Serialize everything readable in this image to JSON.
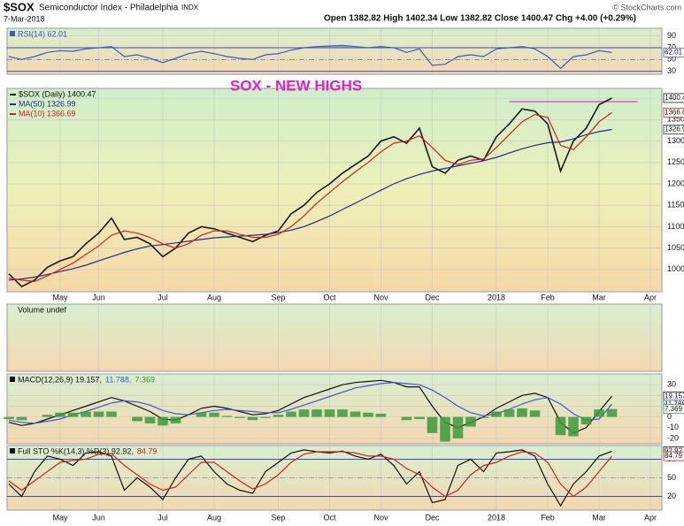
{
  "header": {
    "symbol": "$SOX",
    "name": "Semiconductor Index - Philadelphia",
    "exchange": "INDX",
    "date": "7-Mar-2018",
    "quote": "Open 1382.82 High 1402.34 Low 1382.82 Close 1400.47 Chg +4.00 (+0.29%)",
    "copyright": "© StockCharts.com"
  },
  "chart_data": [
    {
      "type": "line",
      "legend": "stacked",
      "categories": [
        null,
        null,
        null,
        null,
        "May",
        null,
        null,
        "Jun",
        null,
        null,
        null,
        null,
        "Jul",
        null,
        null,
        null,
        "Aug",
        null,
        null,
        null,
        null,
        "Sep",
        null,
        null,
        null,
        "Oct",
        null,
        null,
        null,
        "Nov",
        null,
        null,
        null,
        "Dec",
        null,
        null,
        null,
        null,
        "2018",
        null,
        null,
        null,
        "Feb",
        null,
        null,
        null,
        "Mar",
        null,
        null,
        null,
        "Apr"
      ],
      "ylim": [
        948,
        1423
      ],
      "yticks": [
        1000,
        1050,
        1100,
        1150,
        1200,
        1250,
        1300,
        1350,
        1400
      ],
      "grid": true,
      "annotation": {
        "text": "SOX - NEW HIGHS",
        "color": "#e020c8"
      },
      "hline": {
        "value": 1392,
        "color": "#e040c0"
      },
      "series": [
        {
          "name": "$SOX (Daily) 1400.47",
          "color": "#1a1a1a",
          "values": [
            990,
            960,
            975,
            1005,
            1020,
            1030,
            1060,
            1085,
            1120,
            1070,
            1075,
            1060,
            1030,
            1050,
            1085,
            1100,
            1095,
            1085,
            1075,
            1065,
            1080,
            1090,
            1130,
            1150,
            1180,
            1200,
            1225,
            1245,
            1265,
            1300,
            1310,
            1295,
            1330,
            1240,
            1225,
            1255,
            1265,
            1255,
            1310,
            1340,
            1375,
            1370,
            1340,
            1230,
            1300,
            1330,
            1385,
            1400.47,
            null,
            null,
            null
          ]
        },
        {
          "name": "MA(50) 1326.99",
          "color": "#1f2f8f",
          "values": [
            975,
            978,
            982,
            988,
            995,
            1002,
            1010,
            1020,
            1030,
            1040,
            1048,
            1055,
            1058,
            1062,
            1066,
            1070,
            1074,
            1076,
            1078,
            1080,
            1082,
            1086,
            1092,
            1100,
            1112,
            1125,
            1140,
            1155,
            1170,
            1185,
            1200,
            1212,
            1222,
            1230,
            1236,
            1242,
            1248,
            1254,
            1262,
            1272,
            1282,
            1290,
            1296,
            1298,
            1305,
            1315,
            1322,
            1326.99,
            null,
            null,
            null
          ]
        },
        {
          "name": "MA(10) 1366.69",
          "color": "#d02020",
          "values": [
            980,
            975,
            972,
            985,
            1000,
            1015,
            1035,
            1055,
            1080,
            1090,
            1085,
            1075,
            1060,
            1050,
            1060,
            1080,
            1090,
            1090,
            1082,
            1075,
            1075,
            1082,
            1100,
            1125,
            1155,
            1180,
            1205,
            1228,
            1250,
            1275,
            1295,
            1300,
            1312,
            1285,
            1255,
            1245,
            1255,
            1258,
            1285,
            1315,
            1345,
            1362,
            1355,
            1290,
            1280,
            1310,
            1345,
            1366.69,
            null,
            null,
            null
          ]
        }
      ]
    },
    {
      "type": "line",
      "legend": "inline",
      "ylim": [
        25,
        103
      ],
      "yticks": [
        30,
        50,
        70,
        90
      ],
      "series": [
        {
          "name": "RSI(14) 62.01",
          "color": "#3a5bbf",
          "values": [
            55,
            50,
            55,
            62,
            65,
            64,
            68,
            70,
            72,
            55,
            58,
            52,
            45,
            52,
            60,
            64,
            60,
            55,
            52,
            50,
            58,
            60,
            66,
            70,
            72,
            73,
            74,
            72,
            70,
            72,
            70,
            62,
            68,
            40,
            42,
            55,
            58,
            55,
            68,
            70,
            72,
            68,
            55,
            35,
            55,
            58,
            65,
            62.01,
            null,
            null,
            null
          ]
        }
      ]
    },
    {
      "type": "bar",
      "title": "Volume undef"
    },
    {
      "type": "line",
      "legend": "inline",
      "ylim": [
        -25,
        40
      ],
      "yticks": [
        -20,
        -10,
        0,
        10,
        20,
        30
      ],
      "series": [
        {
          "name": "MACD(12,26,9) 19.157,",
          "color": "#111111",
          "values": [
            -5,
            -8,
            -6,
            -2,
            2,
            6,
            10,
            14,
            18,
            15,
            10,
            5,
            -2,
            -3,
            2,
            8,
            10,
            8,
            5,
            2,
            3,
            6,
            12,
            18,
            22,
            26,
            30,
            32,
            33,
            34,
            32,
            28,
            28,
            10,
            -5,
            -10,
            -5,
            0,
            8,
            14,
            20,
            22,
            18,
            -5,
            -15,
            -10,
            5,
            19.157,
            null,
            null,
            null
          ]
        },
        {
          "name": "11.788,",
          "color": "#3b58d6",
          "values": [
            -3,
            -5,
            -6,
            -4,
            -2,
            2,
            5,
            9,
            13,
            15,
            14,
            11,
            6,
            3,
            2,
            4,
            6,
            7,
            6,
            5,
            4,
            4,
            7,
            11,
            15,
            19,
            23,
            27,
            29,
            31,
            32,
            31,
            30,
            25,
            18,
            10,
            4,
            1,
            3,
            7,
            12,
            16,
            18,
            12,
            3,
            -3,
            -2,
            11.788,
            null,
            null,
            null
          ]
        },
        {
          "name": "7.369",
          "color": "#3a9a3a",
          "style": "histogram",
          "values": [
            -2,
            -3,
            0,
            2,
            4,
            4,
            5,
            5,
            5,
            0,
            -4,
            -6,
            -8,
            -6,
            0,
            4,
            4,
            1,
            -1,
            -3,
            -1,
            2,
            5,
            7,
            7,
            7,
            7,
            5,
            4,
            3,
            0,
            -3,
            -2,
            -15,
            -23,
            -20,
            -9,
            -1,
            5,
            7,
            8,
            6,
            0,
            -17,
            -18,
            -7,
            7,
            7.369,
            null,
            null,
            null
          ]
        }
      ]
    },
    {
      "type": "line",
      "legend": "inline",
      "ylim": [
        -2,
        102
      ],
      "yticks": [
        20,
        50,
        80
      ],
      "series": [
        {
          "name": "Full STO %K(14,3) %D(3) 92.92,",
          "color": "#111111",
          "values": [
            40,
            20,
            60,
            85,
            80,
            70,
            90,
            92,
            85,
            30,
            50,
            35,
            15,
            50,
            80,
            85,
            60,
            40,
            30,
            25,
            60,
            75,
            90,
            95,
            92,
            90,
            93,
            85,
            80,
            88,
            70,
            40,
            60,
            10,
            15,
            70,
            80,
            60,
            90,
            92,
            95,
            85,
            40,
            5,
            40,
            60,
            85,
            92.92,
            null,
            null,
            null
          ]
        },
        {
          "name": "84.79",
          "color": "#d02020",
          "values": [
            45,
            30,
            45,
            60,
            75,
            78,
            80,
            88,
            89,
            70,
            55,
            40,
            30,
            35,
            55,
            75,
            75,
            60,
            45,
            32,
            40,
            55,
            75,
            88,
            92,
            92,
            92,
            90,
            85,
            85,
            80,
            65,
            55,
            35,
            20,
            30,
            55,
            70,
            75,
            85,
            92,
            90,
            75,
            40,
            20,
            35,
            60,
            84.79,
            null,
            null,
            null
          ]
        }
      ]
    }
  ]
}
